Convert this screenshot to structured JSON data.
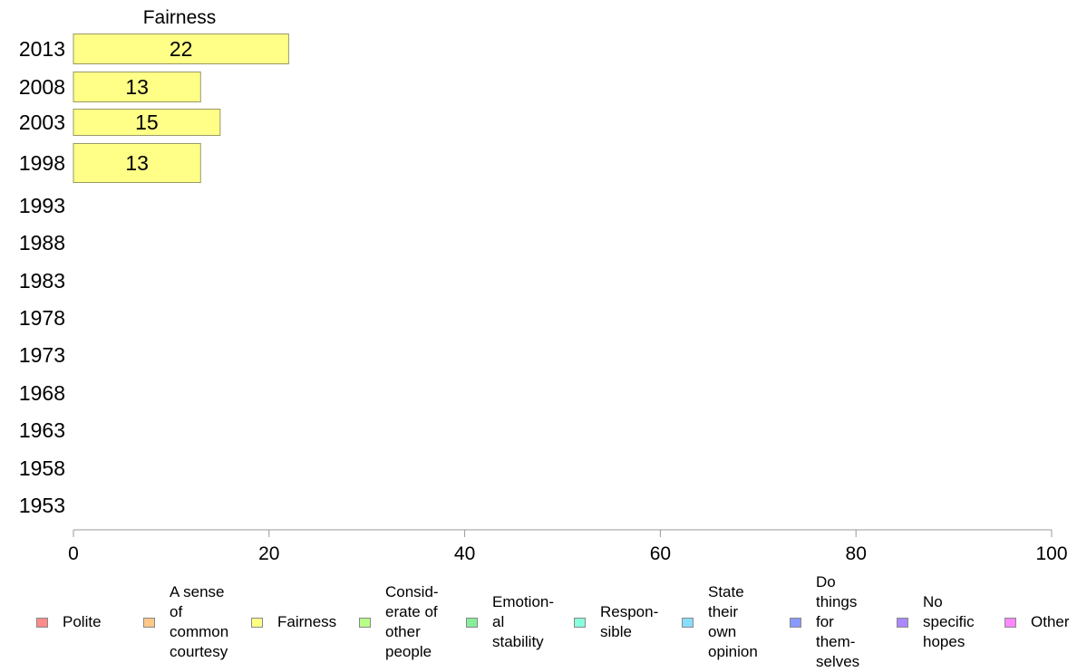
{
  "chart_data": {
    "type": "bar",
    "orientation": "horizontal",
    "title": "Fairness",
    "categories": [
      "2013",
      "2008",
      "2003",
      "1998",
      "1993",
      "1988",
      "1983",
      "1978",
      "1973",
      "1968",
      "1963",
      "1958",
      "1953"
    ],
    "series": [
      {
        "name": "Fairness",
        "values": [
          22,
          13,
          15,
          13,
          null,
          null,
          null,
          null,
          null,
          null,
          null,
          null,
          null
        ]
      }
    ],
    "data_labels": [
      "22",
      "13",
      "15",
      "13"
    ],
    "xlim": [
      0,
      100
    ],
    "x_ticks": [
      0,
      20,
      40,
      60,
      80,
      100
    ],
    "grid": false,
    "legend_position": "bottom",
    "bar_color": "#ffff88",
    "bar_edge_color": "#999966"
  },
  "legend": [
    {
      "label": "Polite",
      "color": "#ff8a8a"
    },
    {
      "label": "A sense\nof\ncommon\ncourtesy",
      "color": "#ffc888"
    },
    {
      "label": "Fairness",
      "color": "#ffff88"
    },
    {
      "label": "Consid-\nerate of\nother\npeople",
      "color": "#b8ff88"
    },
    {
      "label": "Emotion-\nal\nstability",
      "color": "#88ee99"
    },
    {
      "label": "Respon-\nsible",
      "color": "#88ffdd"
    },
    {
      "label": "State\ntheir\nown\nopinion",
      "color": "#88ddff"
    },
    {
      "label": "Do\nthings\nfor\nthem-\nselves",
      "color": "#8899ff"
    },
    {
      "label": "No\nspecific\nhopes",
      "color": "#aa88ff"
    },
    {
      "label": "Other",
      "color": "#ff88ff"
    }
  ]
}
